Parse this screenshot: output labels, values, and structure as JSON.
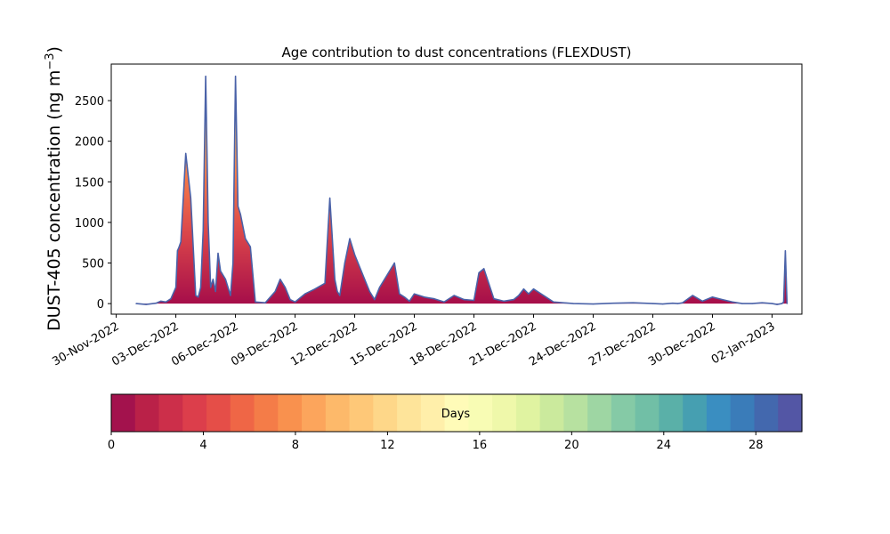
{
  "chart_data": {
    "type": "area",
    "title": "Age contribution to dust concentrations (FLEXDUST)",
    "ylabel": "DUST-405 concentration (ng m",
    "ylabel_superscript": "−3",
    "ylabel_close": ")",
    "xlabel": "",
    "x_tick_labels": [
      "30-Nov-2022",
      "03-Dec-2022",
      "06-Dec-2022",
      "09-Dec-2022",
      "12-Dec-2022",
      "15-Dec-2022",
      "18-Dec-2022",
      "21-Dec-2022",
      "24-Dec-2022",
      "27-Dec-2022",
      "30-Dec-2022",
      "02-Jan-2023"
    ],
    "x_tick_values": [
      "2022-11-30",
      "2022-12-03",
      "2022-12-06",
      "2022-12-09",
      "2022-12-12",
      "2022-12-15",
      "2022-12-18",
      "2022-12-21",
      "2022-12-24",
      "2022-12-27",
      "2022-12-30",
      "2023-01-02"
    ],
    "xlim": [
      "2022-11-29T18:00",
      "2023-01-03T12:00"
    ],
    "ylim": [
      -130,
      2950
    ],
    "y_ticks": [
      0,
      500,
      1000,
      1500,
      2000,
      2500
    ],
    "grid": false,
    "series": [
      {
        "line_color": "#4a62a8",
        "x": [
          "2022-12-01T00:00",
          "2022-12-01T12:00",
          "2022-12-02T00:00",
          "2022-12-02T06:00",
          "2022-12-02T12:00",
          "2022-12-02T18:00",
          "2022-12-03T00:00",
          "2022-12-03T02:00",
          "2022-12-03T04:00",
          "2022-12-03T06:00",
          "2022-12-03T12:00",
          "2022-12-03T18:00",
          "2022-12-04T00:00",
          "2022-12-04T03:00",
          "2022-12-04T06:00",
          "2022-12-04T09:00",
          "2022-12-04T12:00",
          "2022-12-04T15:00",
          "2022-12-04T18:00",
          "2022-12-04T21:00",
          "2022-12-05T00:00",
          "2022-12-05T03:00",
          "2022-12-05T06:00",
          "2022-12-05T12:00",
          "2022-12-05T18:00",
          "2022-12-05T21:00",
          "2022-12-06T00:00",
          "2022-12-06T03:00",
          "2022-12-06T06:00",
          "2022-12-06T12:00",
          "2022-12-06T18:00",
          "2022-12-07T00:00",
          "2022-12-07T12:00",
          "2022-12-08T00:00",
          "2022-12-08T06:00",
          "2022-12-08T12:00",
          "2022-12-08T18:00",
          "2022-12-09T00:00",
          "2022-12-09T12:00",
          "2022-12-10T00:00",
          "2022-12-10T12:00",
          "2022-12-10T18:00",
          "2022-12-11T00:00",
          "2022-12-11T03:00",
          "2022-12-11T06:00",
          "2022-12-11T12:00",
          "2022-12-11T18:00",
          "2022-12-12T00:00",
          "2022-12-12T12:00",
          "2022-12-12T18:00",
          "2022-12-13T00:00",
          "2022-12-13T06:00",
          "2022-12-13T12:00",
          "2022-12-14T00:00",
          "2022-12-14T06:00",
          "2022-12-14T12:00",
          "2022-12-14T18:00",
          "2022-12-15T00:00",
          "2022-12-15T12:00",
          "2022-12-15T18:00",
          "2022-12-16T00:00",
          "2022-12-16T12:00",
          "2022-12-17T00:00",
          "2022-12-17T12:00",
          "2022-12-18T00:00",
          "2022-12-18T06:00",
          "2022-12-18T12:00",
          "2022-12-19T00:00",
          "2022-12-19T12:00",
          "2022-12-20T00:00",
          "2022-12-20T06:00",
          "2022-12-20T12:00",
          "2022-12-20T18:00",
          "2022-12-21T00:00",
          "2022-12-22T00:00",
          "2022-12-23T00:00",
          "2022-12-24T00:00",
          "2022-12-25T00:00",
          "2022-12-26T00:00",
          "2022-12-27T00:00",
          "2022-12-27T12:00",
          "2022-12-28T00:00",
          "2022-12-28T06:00",
          "2022-12-28T12:00",
          "2022-12-29T00:00",
          "2022-12-29T12:00",
          "2022-12-30T00:00",
          "2022-12-30T12:00",
          "2022-12-31T00:00",
          "2022-12-31T12:00",
          "2023-01-01T00:00",
          "2023-01-01T12:00",
          "2023-01-02T00:00",
          "2023-01-02T06:00",
          "2023-01-02T12:00",
          "2023-01-02T14:00",
          "2023-01-02T16:00",
          "2023-01-02T18:00"
        ],
        "y": [
          0,
          -10,
          5,
          30,
          20,
          60,
          200,
          650,
          700,
          760,
          1850,
          1300,
          100,
          80,
          200,
          900,
          2800,
          1000,
          200,
          300,
          150,
          620,
          400,
          300,
          100,
          500,
          2800,
          1200,
          1100,
          800,
          700,
          20,
          10,
          150,
          300,
          200,
          50,
          20,
          120,
          180,
          250,
          1300,
          300,
          150,
          100,
          500,
          800,
          600,
          300,
          150,
          50,
          200,
          300,
          500,
          120,
          80,
          30,
          120,
          80,
          70,
          60,
          20,
          100,
          50,
          40,
          380,
          430,
          60,
          30,
          50,
          100,
          180,
          120,
          180,
          20,
          0,
          -5,
          5,
          10,
          0,
          -5,
          5,
          0,
          10,
          100,
          30,
          80,
          50,
          20,
          0,
          0,
          10,
          0,
          -10,
          0,
          20,
          650,
          0
        ]
      }
    ],
    "age_gradient_stops": [
      {
        "offset": 0.0,
        "color": "#a60e4a"
      },
      {
        "offset": 0.3,
        "color": "#d9444a"
      },
      {
        "offset": 0.55,
        "color": "#f57847"
      },
      {
        "offset": 0.75,
        "color": "#fdb865"
      },
      {
        "offset": 0.9,
        "color": "#fee595"
      },
      {
        "offset": 1.0,
        "color": "#fdf6b4"
      }
    ],
    "colorbar": {
      "label": "Days",
      "range": [
        0,
        30
      ],
      "ticks": [
        0,
        4,
        8,
        12,
        16,
        20,
        24,
        28
      ],
      "colors": [
        "#a3124d",
        "#ba2148",
        "#cc2f4a",
        "#dc3e4b",
        "#e54e48",
        "#ef6646",
        "#f47c48",
        "#f9914e",
        "#fca55c",
        "#fdb96a",
        "#fec878",
        "#fed789",
        "#fee49a",
        "#ffefaa",
        "#fffbb8",
        "#f8fcb4",
        "#eff8aa",
        "#e0f3a1",
        "#cbea9d",
        "#b7e1a0",
        "#9ed6a3",
        "#85caa6",
        "#71bfa6",
        "#5ab0a8",
        "#469fb1",
        "#3a8ec1",
        "#3a7cb9",
        "#4368ae",
        "#5356a5"
      ]
    }
  }
}
